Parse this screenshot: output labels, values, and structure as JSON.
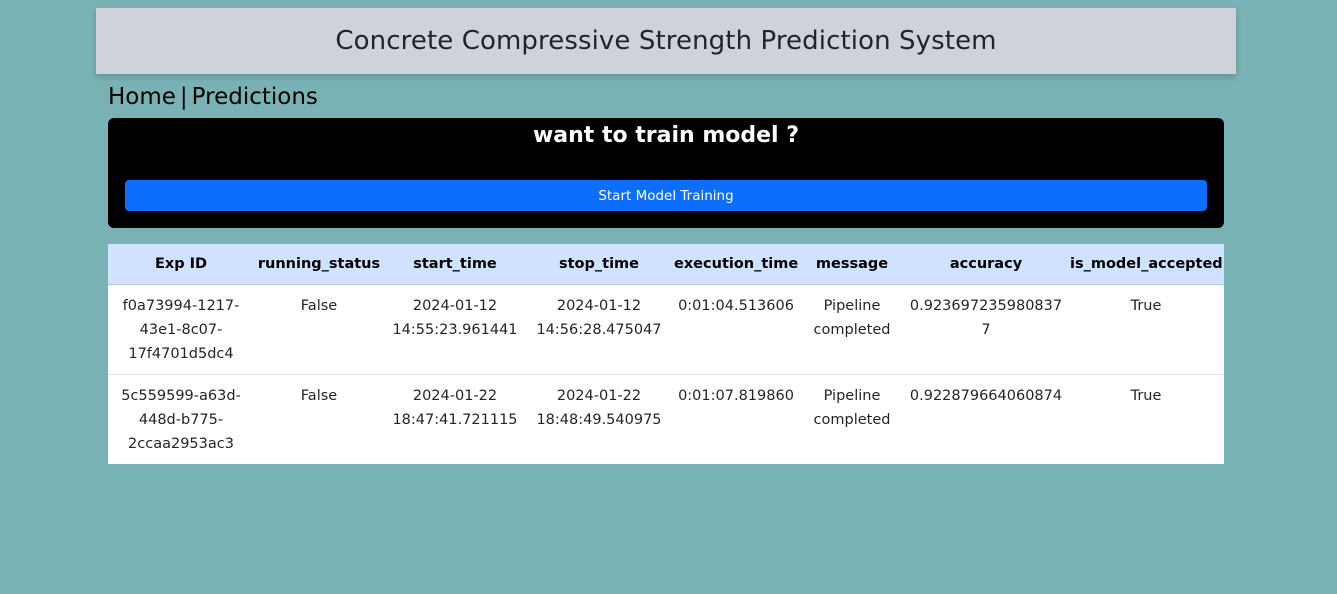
{
  "header": {
    "title": "Concrete Compressive Strength Prediction System"
  },
  "nav": {
    "home": "Home",
    "separator": "|",
    "predictions": "Predictions"
  },
  "train_panel": {
    "heading": "want to train model ?",
    "button_label": "Start Model Training",
    "button_color": "#0d6efd"
  },
  "table": {
    "header_color": "#cfe2ff",
    "columns": [
      "Exp ID",
      "running_status",
      "start_time",
      "stop_time",
      "execution_time",
      "message",
      "accuracy",
      "is_model_accepted"
    ],
    "rows": [
      {
        "exp_id_lines": [
          "f0a73994-1217-",
          "43e1-8c07-",
          "17f4701d5dc4"
        ],
        "running_status": "False",
        "start_time_lines": [
          "2024-01-12",
          "14:55:23.961441"
        ],
        "stop_time_lines": [
          "2024-01-12",
          "14:56:28.475047"
        ],
        "execution_time": "0:01:04.513606",
        "message_lines": [
          "Pipeline",
          "completed"
        ],
        "accuracy": "0.9236972359808377",
        "is_model_accepted": "True"
      },
      {
        "exp_id_lines": [
          "5c559599-a63d-",
          "448d-b775-",
          "2ccaa2953ac3"
        ],
        "running_status": "False",
        "start_time_lines": [
          "2024-01-22",
          "18:47:41.721115"
        ],
        "stop_time_lines": [
          "2024-01-22",
          "18:48:49.540975"
        ],
        "execution_time": "0:01:07.819860",
        "message_lines": [
          "Pipeline",
          "completed"
        ],
        "accuracy": "0.922879664060874",
        "is_model_accepted": "True"
      }
    ]
  },
  "colors": {
    "page_background": "#79b2b5",
    "header_background": "#cfd3d9",
    "panel_background": "#000000"
  }
}
